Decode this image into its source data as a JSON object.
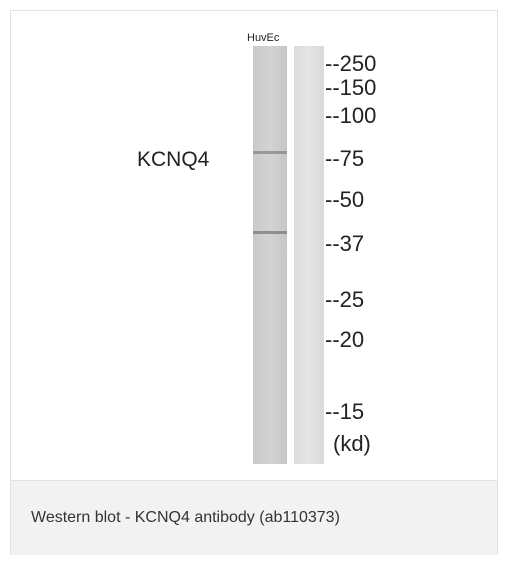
{
  "blot": {
    "lane_label": "HuvEc",
    "protein_label": "KCNQ4",
    "markers": [
      "--250",
      "--150",
      "--100",
      "--75",
      "--50",
      "--37",
      "--25",
      "--20",
      "--15"
    ],
    "unit": "(kd)"
  },
  "caption": "Western blot - KCNQ4 antibody (ab110373)"
}
